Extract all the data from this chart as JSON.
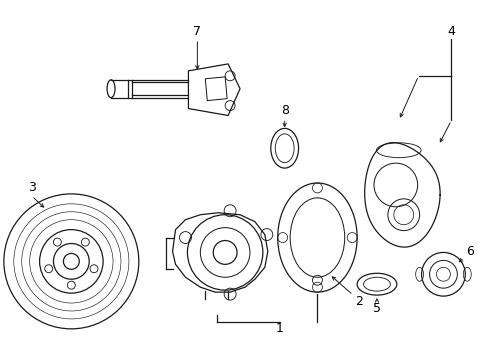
{
  "background_color": "#ffffff",
  "line_color": "#1a1a1a",
  "label_fontsize": 9,
  "label_color": "#000000",
  "fig_w": 4.89,
  "fig_h": 3.6,
  "dpi": 100
}
